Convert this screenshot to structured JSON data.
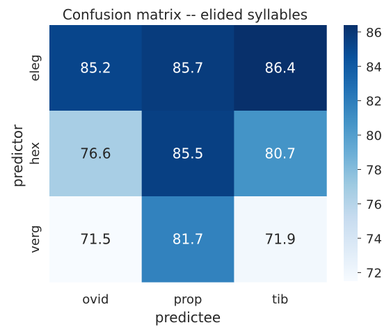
{
  "chart_data": {
    "type": "heatmap",
    "title": "Confusion matrix -- elided syllables",
    "xlabel": "predictee",
    "ylabel": "predictor",
    "x_categories": [
      "ovid",
      "prop",
      "tib"
    ],
    "y_categories": [
      "eleg",
      "hex",
      "verg"
    ],
    "values": [
      [
        85.2,
        85.7,
        86.4
      ],
      [
        76.6,
        85.5,
        80.7
      ],
      [
        71.5,
        81.7,
        71.9
      ]
    ],
    "value_labels": [
      [
        "85.2",
        "85.7",
        "86.4"
      ],
      [
        "76.6",
        "85.5",
        "80.7"
      ],
      [
        "71.5",
        "81.7",
        "71.9"
      ]
    ],
    "colormap": "Blues",
    "colorbar": {
      "range": [
        71.5,
        86.4
      ],
      "ticks": [
        72,
        74,
        76,
        78,
        80,
        82,
        84,
        86
      ],
      "tick_labels": [
        "72",
        "74",
        "76",
        "78",
        "80",
        "82",
        "84",
        "86"
      ]
    },
    "colors": {
      "low": "#f7fbff",
      "high": "#08306b",
      "text_dark": "#262626",
      "text_light": "#ffffff"
    },
    "grid": false,
    "legend": "colorbar-right"
  }
}
